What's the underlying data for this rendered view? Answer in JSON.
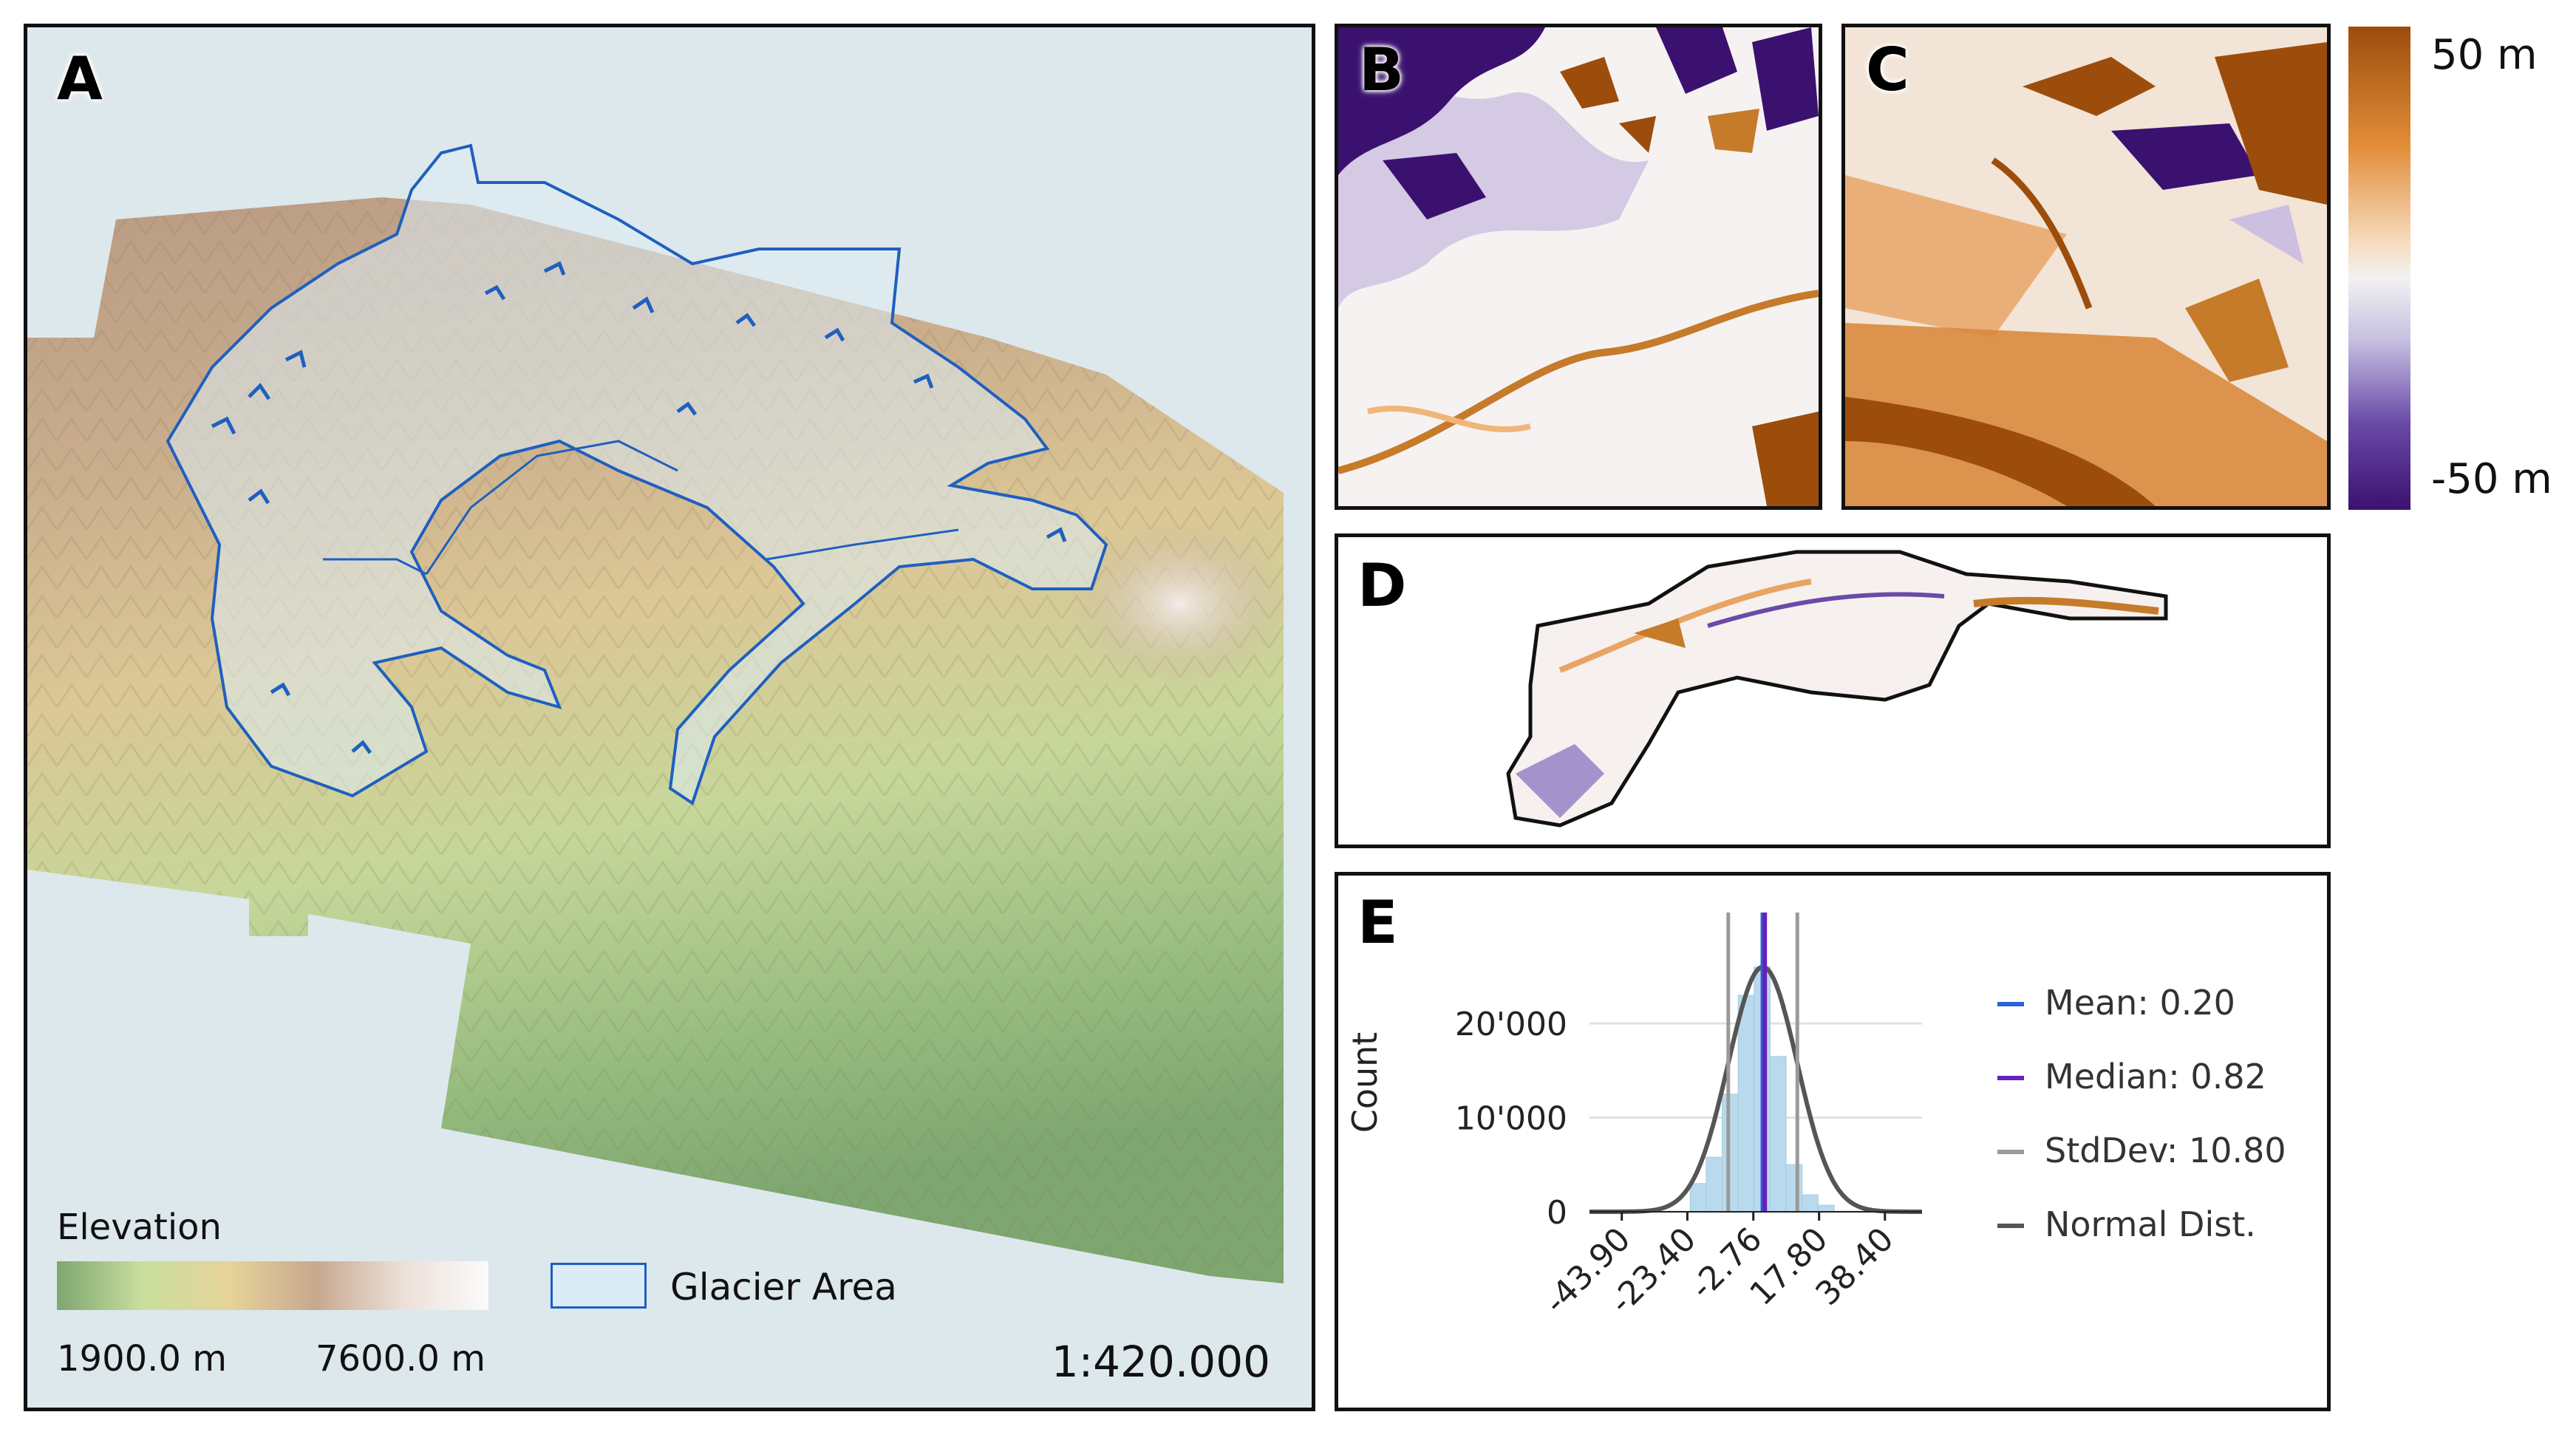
{
  "panels": {
    "a": {
      "label": "A",
      "legend_title": "Elevation",
      "elev_min": "1900.0 m",
      "elev_max": "7600.0 m",
      "glacier_label": "Glacier Area",
      "scale": "1:420.000"
    },
    "b": {
      "label": "B"
    },
    "c": {
      "label": "C"
    },
    "d": {
      "label": "D"
    },
    "e": {
      "label": "E"
    }
  },
  "colorbar": {
    "max_label": "50 m",
    "min_label": "-50 m"
  },
  "colors": {
    "glacier_outline": "#1f5fbf",
    "glacier_fill": "#dcecf6",
    "background": "#dde8ec",
    "diff_neg": "#3b1170",
    "diff_pos": "#9c4d0c"
  },
  "chart_data": {
    "type": "bar",
    "xlabel": "",
    "ylabel": "Count",
    "x_tick_labels": [
      "-43.90",
      "-23.40",
      "-2.76",
      "17.80",
      "38.40"
    ],
    "y_tick_labels": [
      "0",
      "10'000",
      "20'000"
    ],
    "xlim": [
      -54,
      50
    ],
    "ylim": [
      0,
      31000
    ],
    "bin_width": 5,
    "bins": [
      {
        "x": -20,
        "count": 3000
      },
      {
        "x": -15,
        "count": 5800
      },
      {
        "x": -10,
        "count": 12500
      },
      {
        "x": -5,
        "count": 23000
      },
      {
        "x": 0,
        "count": 26000
      },
      {
        "x": 5,
        "count": 16500
      },
      {
        "x": 10,
        "count": 5000
      },
      {
        "x": 15,
        "count": 1800
      },
      {
        "x": 20,
        "count": 700
      }
    ],
    "stats": {
      "mean": 0.2,
      "median": 0.82,
      "stddev": 10.8
    },
    "legend": [
      {
        "key": "mean",
        "label": "Mean: 0.20",
        "color": "#2a63d6"
      },
      {
        "key": "median",
        "label": "Median: 0.82",
        "color": "#6a1fbf"
      },
      {
        "key": "stddev",
        "label": "StdDev: 10.80",
        "color": "#9a9a9a"
      },
      {
        "key": "normal",
        "label": "Normal Dist.",
        "color": "#555555"
      }
    ]
  }
}
